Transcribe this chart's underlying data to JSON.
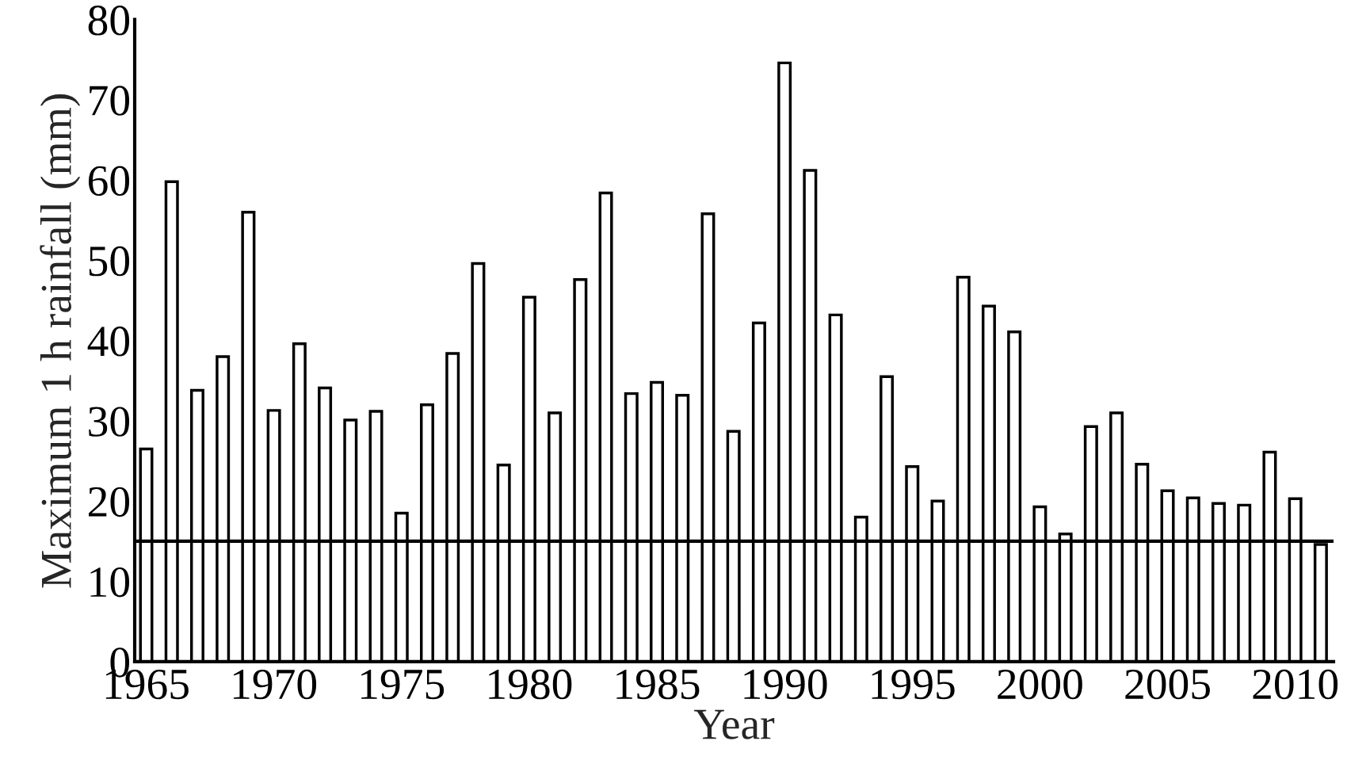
{
  "chart_data": {
    "type": "bar",
    "xlabel": "Year",
    "ylabel": "Maximum 1 h rainfall (mm)",
    "categories": [
      "1965",
      null,
      null,
      null,
      null,
      "1970",
      null,
      null,
      null,
      null,
      "1975",
      null,
      null,
      null,
      null,
      "1980",
      null,
      null,
      null,
      null,
      "1985",
      null,
      null,
      null,
      null,
      "1990",
      null,
      null,
      null,
      null,
      "1995",
      null,
      null,
      null,
      null,
      "2000",
      null,
      null,
      null,
      null,
      "2005",
      null,
      null,
      null,
      null,
      "2010",
      null
    ],
    "values": [
      26.5,
      59.8,
      33.8,
      38,
      56,
      31.3,
      39.6,
      34.1,
      30.1,
      31.2,
      18.5,
      32,
      38.4,
      49.6,
      24.5,
      45.4,
      31,
      47.6,
      58.4,
      33.4,
      34.8,
      33.2,
      55.8,
      28.7,
      42.2,
      74.6,
      61.2,
      43.2,
      18,
      35.5,
      24.3,
      20,
      47.9,
      44.3,
      41.1,
      19.3,
      15.9,
      29.3,
      31,
      24.6,
      21.3,
      20.4,
      19.7,
      19.5,
      26.1,
      20.3,
      14.6
    ],
    "color": "#ffffff",
    "ylim": [
      0,
      80
    ],
    "yticks": [
      0,
      10,
      20,
      30,
      40,
      50,
      60,
      70,
      80
    ],
    "ref_lines": [
      {
        "axis": "y",
        "value": 15,
        "color": "#000000"
      }
    ],
    "grid": false,
    "legend": false
  }
}
